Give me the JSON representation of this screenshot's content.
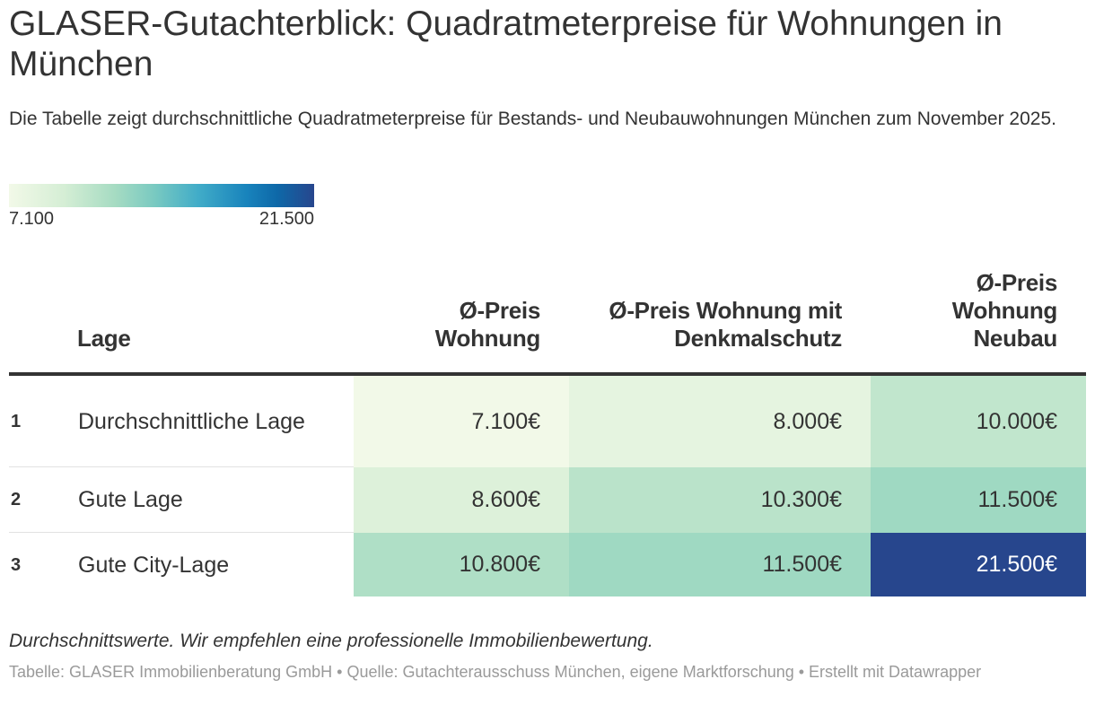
{
  "title": "GLASER-Gutachterblick: Quadratmeterpreise für Wohnungen in München",
  "subtitle": "Die Tabelle zeigt durchschnittliche Quadratmeterpreise für Bestands- und Neubauwohnungen München zum November 2025.",
  "legend": {
    "min_label": "7.100",
    "max_label": "21.500",
    "min": 7100,
    "max": 21500,
    "colors": [
      "#f2f9e8",
      "#d5eed5",
      "#a5dbc2",
      "#78c9c1",
      "#41acc8",
      "#1883bc",
      "#0e68a8",
      "#27468d"
    ]
  },
  "chart_data": {
    "type": "table",
    "title": "GLASER-Gutachterblick: Quadratmeterpreise für Wohnungen in München",
    "columns": [
      "",
      "Lage",
      "Ø-Preis Wohnung",
      "Ø-Preis Wohnung mit Denkmalschutz",
      "Ø-Preis Wohnung Neubau"
    ],
    "rows": [
      {
        "rank": "1",
        "lage": "Durchschnittliche Lage",
        "values": [
          7100,
          8000,
          10000
        ],
        "labels": [
          "7.100€",
          "8.000€",
          "10.000€"
        ]
      },
      {
        "rank": "2",
        "lage": "Gute Lage",
        "values": [
          8600,
          10300,
          11500
        ],
        "labels": [
          "8.600€",
          "10.300€",
          "11.500€"
        ]
      },
      {
        "rank": "3",
        "lage": "Gute City-Lage",
        "values": [
          10800,
          11500,
          21500
        ],
        "labels": [
          "10.800€",
          "11.500€",
          "21.500€"
        ]
      }
    ],
    "color_scale": {
      "min": 7100,
      "max": 21500
    }
  },
  "notes": "Durchschnittswerte. Wir empfehlen eine professionelle Immobilienbewertung.",
  "source": "Tabelle: GLASER Immobilienberatung GmbH • Quelle: Gutachterausschuss München, eigene Marktforschung • Erstellt mit Datawrapper"
}
